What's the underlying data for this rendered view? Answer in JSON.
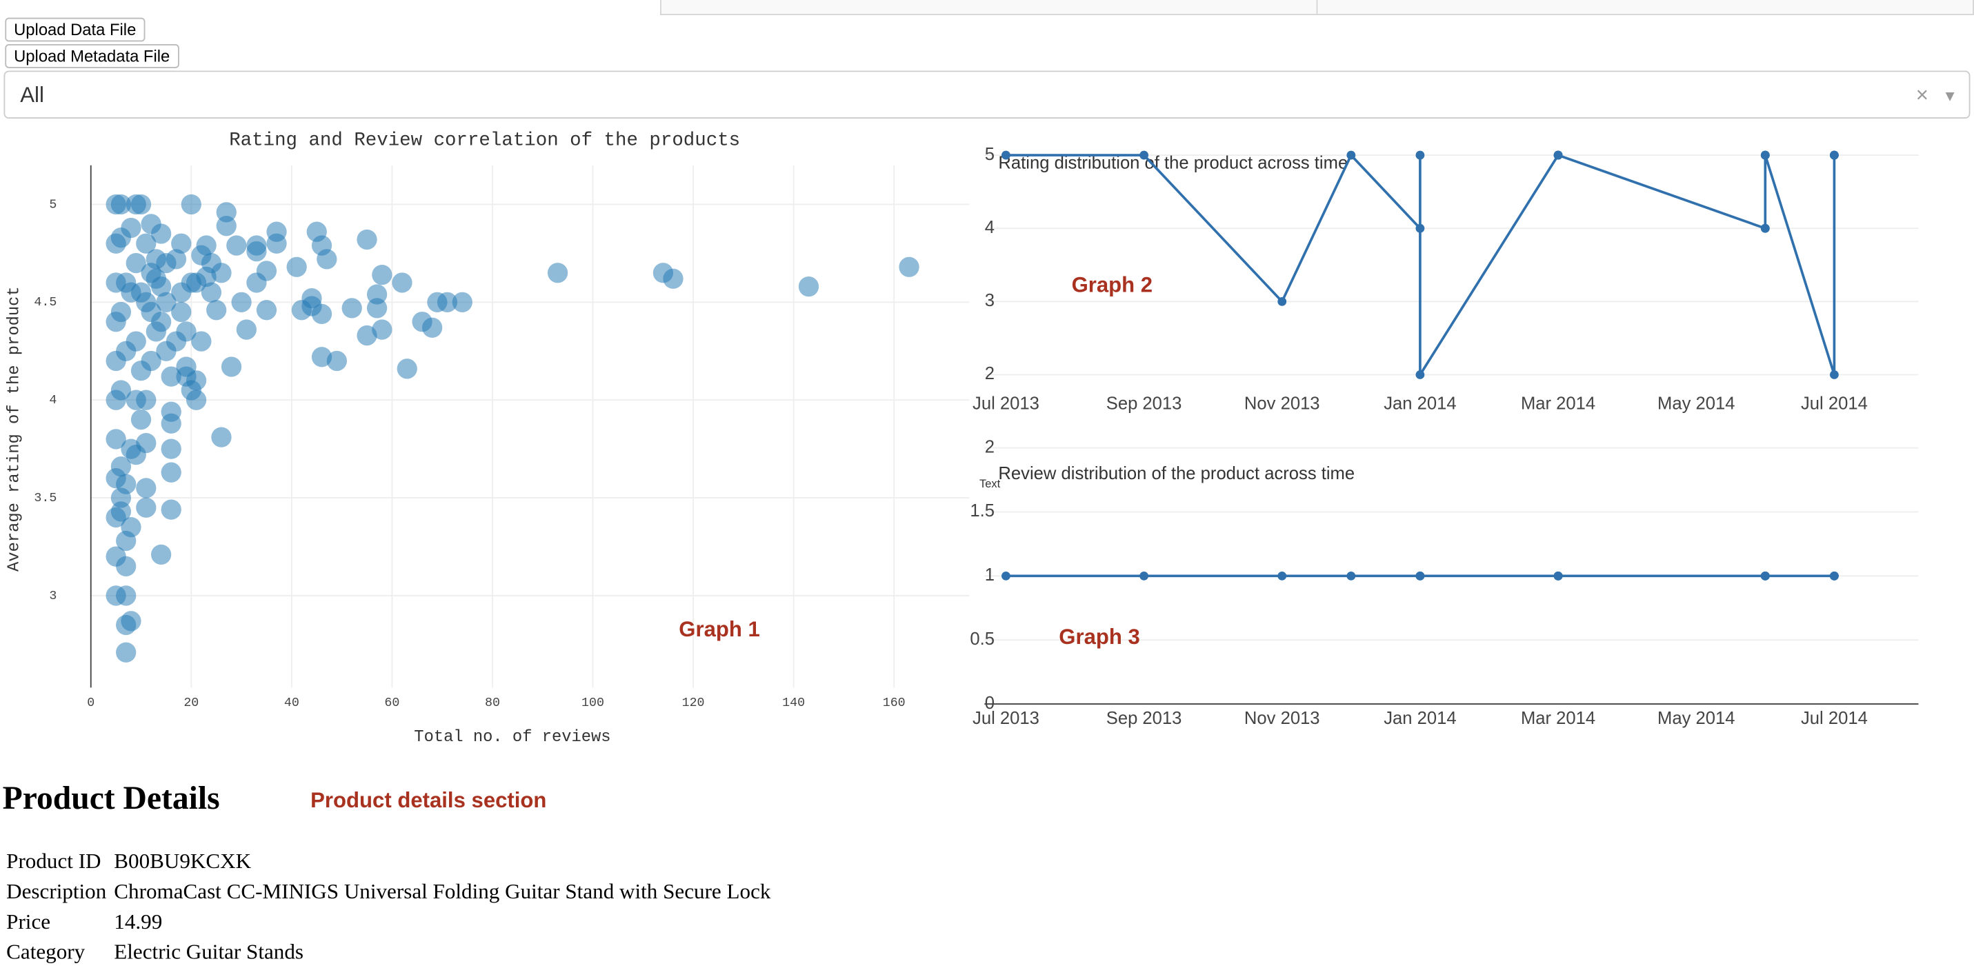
{
  "ui": {
    "buttons": [
      "Upload Data File",
      "Upload Metadata File"
    ],
    "dropdown": {
      "value": "All"
    },
    "annotations": [
      "Graph 1",
      "Graph 2",
      "Graph 3",
      "Product details section"
    ]
  },
  "product_details": {
    "title": "Product Details",
    "rows": [
      [
        "Product ID",
        "B00BU9KCXK"
      ],
      [
        "Description",
        "ChromaCast CC-MINIGS Universal Folding Guitar Stand with Secure Lock"
      ],
      [
        "Price",
        14.99
      ],
      [
        "Category",
        "Electric Guitar Stands"
      ]
    ]
  },
  "chart_data": [
    {
      "type": "scatter",
      "title": "Rating and Review correlation of the products",
      "xlabel": "Total no. of reviews",
      "ylabel": "Average rating of the product",
      "color": "#1f77b4",
      "opacity": 0.5,
      "grid": true,
      "xlim": [
        0,
        175
      ],
      "xticks": [
        0,
        20,
        40,
        60,
        80,
        100,
        120,
        140,
        160
      ],
      "ylim": [
        2.53,
        5.2
      ],
      "yticks": [
        3,
        3.5,
        4,
        4.5,
        5
      ],
      "x": [
        163,
        143,
        116,
        114,
        93,
        74,
        71,
        69,
        68,
        66,
        63,
        62,
        58,
        58,
        57,
        57,
        55,
        55,
        52,
        49,
        46,
        47,
        46,
        45,
        44,
        44,
        46,
        42,
        41,
        37,
        37,
        35,
        35,
        33,
        33,
        33,
        31,
        30,
        29,
        28,
        27,
        27,
        26,
        26,
        25,
        24,
        23,
        22,
        22,
        21,
        21,
        21,
        20,
        20,
        19,
        18,
        18,
        17,
        16,
        16,
        16,
        16,
        16,
        16,
        15,
        15,
        14,
        14,
        14,
        13,
        12,
        12,
        11,
        11,
        11,
        11,
        10,
        10,
        9,
        9,
        9,
        9,
        8,
        8,
        8,
        8,
        7,
        7,
        7,
        7,
        7,
        7,
        7,
        7,
        6,
        6,
        6,
        6,
        6,
        6,
        5,
        5,
        5,
        5,
        5,
        5,
        5,
        5,
        5,
        5,
        5,
        6,
        8,
        10,
        12,
        13,
        11,
        9,
        18,
        17,
        20,
        23,
        24,
        19,
        13,
        15,
        11,
        10,
        12,
        14,
        19
      ],
      "y": [
        4.68,
        4.58,
        4.62,
        4.65,
        4.65,
        4.5,
        4.5,
        4.5,
        4.37,
        4.4,
        4.16,
        4.6,
        4.64,
        4.36,
        4.54,
        4.47,
        4.33,
        4.82,
        4.47,
        4.2,
        4.22,
        4.72,
        4.79,
        4.86,
        4.52,
        4.48,
        4.44,
        4.46,
        4.68,
        4.8,
        4.86,
        4.46,
        4.66,
        4.6,
        4.76,
        4.79,
        4.36,
        4.5,
        4.79,
        4.17,
        4.89,
        4.96,
        4.65,
        3.81,
        4.46,
        4.55,
        4.79,
        4.3,
        4.74,
        4.6,
        4.1,
        4,
        5,
        4.05,
        4.17,
        4.8,
        4.45,
        4.3,
        3.44,
        3.63,
        3.75,
        3.88,
        3.94,
        4.12,
        4.5,
        4.7,
        3.21,
        4.4,
        4.85,
        4.62,
        4.2,
        4.45,
        3.45,
        3.55,
        3.78,
        4.8,
        4.55,
        3.9,
        4,
        4.3,
        4.7,
        5,
        3.75,
        3.35,
        2.87,
        4.88,
        3.28,
        3.15,
        2.85,
        2.71,
        3,
        3.57,
        4.25,
        4.6,
        5,
        3.43,
        3.66,
        3.5,
        4.45,
        4.05,
        3,
        3.2,
        3.4,
        3.6,
        3.8,
        4,
        4.2,
        4.4,
        4.6,
        4.8,
        5,
        4.83,
        4.55,
        4.15,
        4.9,
        4.35,
        4,
        3.72,
        4.55,
        4.72,
        4.6,
        4.63,
        4.7,
        4.35,
        4.72,
        4.25,
        4.5,
        5,
        4.65,
        4.58,
        4.12
      ]
    },
    {
      "type": "line",
      "title": "Rating distribution of the product across time",
      "color": "#2f70ad",
      "grid": true,
      "xlim": [
        "2013-07",
        "2014-08"
      ],
      "xticks": [
        {
          "value": "2013-07",
          "label": "Jul 2013"
        },
        {
          "value": "2013-09",
          "label": "Sep 2013"
        },
        {
          "value": "2013-11",
          "label": "Nov 2013"
        },
        {
          "value": "2014-01",
          "label": "Jan 2014"
        },
        {
          "value": "2014-03",
          "label": "Mar 2014"
        },
        {
          "value": "2014-05",
          "label": "May 2014"
        },
        {
          "value": "2014-07",
          "label": "Jul 2014"
        }
      ],
      "ylim": [
        1.8,
        5.2
      ],
      "yticks": [
        2,
        3,
        4,
        5
      ],
      "x": [
        "2013-07",
        "2013-09",
        "2013-11",
        "2013-12",
        "2014-01",
        "2014-01",
        "2014-01",
        "2014-03",
        "2014-03",
        "2014-03",
        "2014-03",
        "2014-03",
        "2014-06",
        "2014-06",
        "2014-06",
        "2014-06",
        "2014-06",
        "2014-07",
        "2014-07",
        "2014-07",
        "2014-07"
      ],
      "values": [
        5,
        5,
        3,
        5,
        4,
        5,
        2,
        5,
        5,
        5,
        5,
        5,
        4,
        5,
        5,
        4,
        5,
        2,
        5,
        5,
        5
      ]
    },
    {
      "type": "line",
      "title": "Review distribution of the product across time",
      "ylabel": "Text",
      "color": "#2f70ad",
      "grid": true,
      "xlim": [
        "2013-07",
        "2014-08"
      ],
      "xticks": [
        {
          "value": "2013-07",
          "label": "Jul 2013"
        },
        {
          "value": "2013-09",
          "label": "Sep 2013"
        },
        {
          "value": "2013-11",
          "label": "Nov 2013"
        },
        {
          "value": "2014-01",
          "label": "Jan 2014"
        },
        {
          "value": "2014-03",
          "label": "Mar 2014"
        },
        {
          "value": "2014-05",
          "label": "May 2014"
        },
        {
          "value": "2014-07",
          "label": "Jul 2014"
        }
      ],
      "ylim": [
        0,
        2
      ],
      "yticks": [
        0,
        0.5,
        1,
        1.5,
        2
      ],
      "x": [
        "2013-07",
        "2013-09",
        "2013-11",
        "2013-12",
        "2014-01",
        "2014-01",
        "2014-01",
        "2014-03",
        "2014-03",
        "2014-03",
        "2014-03",
        "2014-03",
        "2014-06",
        "2014-06",
        "2014-06",
        "2014-06",
        "2014-06",
        "2014-07",
        "2014-07",
        "2014-07",
        "2014-07"
      ],
      "values": [
        1,
        1,
        1,
        1,
        1,
        1,
        1,
        1,
        1,
        1,
        1,
        1,
        1,
        1,
        1,
        1,
        1,
        1,
        1,
        1,
        1
      ]
    }
  ]
}
